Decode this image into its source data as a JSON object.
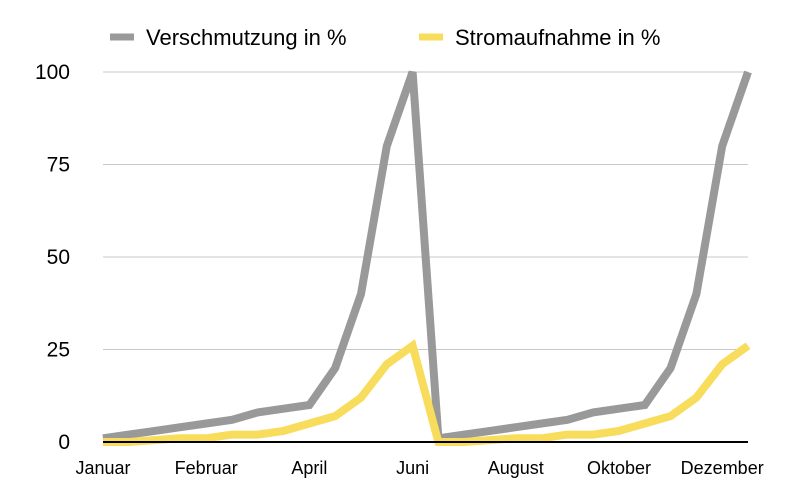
{
  "chart_data": {
    "type": "line",
    "title": "",
    "xlabel": "",
    "ylabel": "",
    "ylim": [
      0,
      100
    ],
    "yticks": [
      "0",
      "25",
      "50",
      "75",
      "100"
    ],
    "x_tick_labels": [
      {
        "index": 0,
        "label": "Januar"
      },
      {
        "index": 4,
        "label": "Februar"
      },
      {
        "index": 8,
        "label": "April"
      },
      {
        "index": 12,
        "label": "Juni"
      },
      {
        "index": 16,
        "label": "August"
      },
      {
        "index": 20,
        "label": "Oktober"
      },
      {
        "index": 24,
        "label": "Dezember"
      }
    ],
    "legend_position": "top",
    "grid": true,
    "series": [
      {
        "name": "Verschmutzung in %",
        "color": "#999999",
        "values": [
          1,
          2,
          3,
          4,
          5,
          6,
          8,
          9,
          10,
          20,
          40,
          80,
          100,
          1,
          2,
          3,
          4,
          5,
          6,
          8,
          9,
          10,
          20,
          40,
          80,
          100
        ]
      },
      {
        "name": "Stromaufnahme in %",
        "color": "#f8dc5c",
        "values": [
          0,
          0,
          0.5,
          1,
          1,
          2,
          2,
          3,
          5,
          7,
          12,
          21,
          26,
          0,
          0,
          0.5,
          1,
          1,
          2,
          2,
          3,
          5,
          7,
          12,
          21,
          26
        ]
      }
    ]
  }
}
